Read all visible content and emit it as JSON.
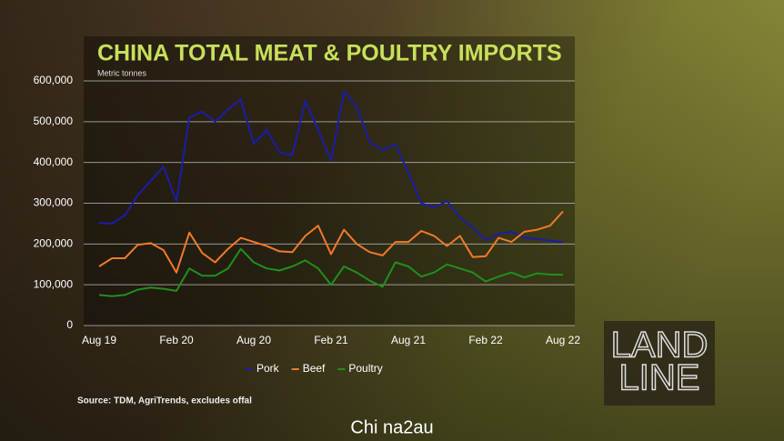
{
  "chart_data": {
    "type": "line",
    "title": "CHINA TOTAL MEAT & POULTRY IMPORTS",
    "subtitle": "Metric tonnes",
    "source": "Source: TDM, AgriTrends, excludes offal",
    "logo": [
      "LAND",
      "LINE"
    ],
    "watermark": "Chi na2au",
    "categories": [
      "Aug 19",
      null,
      null,
      null,
      null,
      null,
      "Feb 20",
      null,
      null,
      null,
      null,
      null,
      "Aug 20",
      null,
      null,
      null,
      null,
      null,
      "Feb 21",
      null,
      null,
      null,
      null,
      null,
      "Aug 21",
      null,
      null,
      null,
      null,
      null,
      "Feb 22",
      null,
      null,
      null,
      null,
      null,
      "Aug 22"
    ],
    "series": [
      {
        "name": "Pork",
        "color": "#1c1ca8",
        "values": [
          252000,
          250000,
          270000,
          320000,
          355000,
          390000,
          305000,
          510000,
          525000,
          500000,
          530000,
          555000,
          445000,
          480000,
          425000,
          418000,
          550000,
          480000,
          405000,
          575000,
          535000,
          450000,
          430000,
          445000,
          375000,
          300000,
          290000,
          305000,
          265000,
          240000,
          210000,
          225000,
          230000,
          215000,
          212000,
          208000,
          205000
        ]
      },
      {
        "name": "Beef",
        "color": "#f07a2a",
        "values": [
          145000,
          165000,
          165000,
          198000,
          202000,
          185000,
          130000,
          228000,
          178000,
          155000,
          188000,
          215000,
          205000,
          195000,
          182000,
          180000,
          220000,
          245000,
          175000,
          235000,
          200000,
          180000,
          172000,
          205000,
          205000,
          232000,
          220000,
          195000,
          220000,
          168000,
          170000,
          215000,
          205000,
          230000,
          235000,
          245000,
          280000
        ]
      },
      {
        "name": "Poultry",
        "color": "#1e901e",
        "values": [
          75000,
          72000,
          75000,
          88000,
          93000,
          90000,
          85000,
          140000,
          122000,
          122000,
          140000,
          188000,
          155000,
          140000,
          135000,
          145000,
          160000,
          140000,
          100000,
          145000,
          130000,
          110000,
          95000,
          155000,
          145000,
          120000,
          130000,
          150000,
          140000,
          130000,
          108000,
          120000,
          130000,
          118000,
          128000,
          125000,
          125000
        ]
      }
    ],
    "ylim": [
      0,
      600000
    ],
    "yticks": [
      0,
      {
        "value": 100000,
        "label": "100,000"
      },
      {
        "value": 200000,
        "label": "200,000"
      },
      {
        "value": 300000,
        "label": "300,000"
      },
      {
        "value": 400000,
        "label": "400,000"
      },
      {
        "value": 500000,
        "label": "500,000"
      },
      {
        "value": 600000,
        "label": "600,000"
      }
    ],
    "grid": true,
    "legend": "bottom"
  }
}
